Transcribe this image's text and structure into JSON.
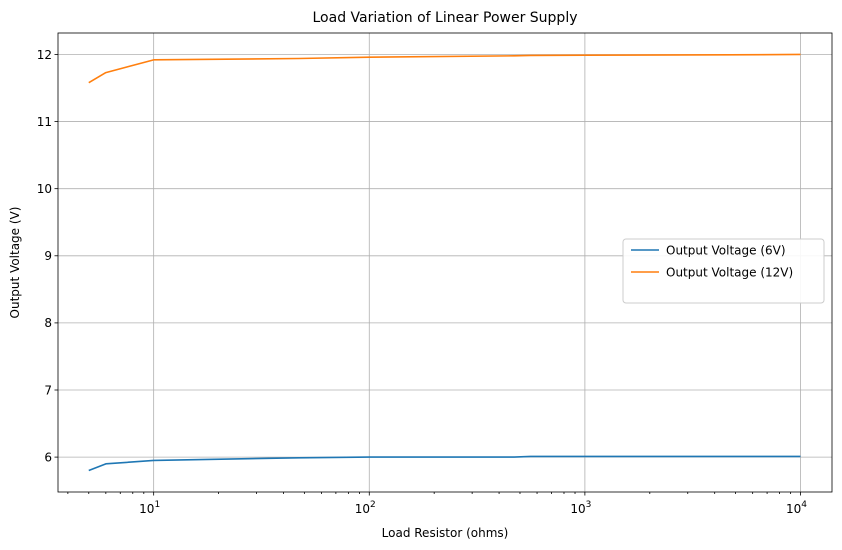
{
  "chart_data": {
    "type": "line",
    "title": "Load Variation of Linear Power Supply",
    "xlabel": "Load Resistor (ohms)",
    "ylabel": "Output Voltage (V)",
    "xscale": "log",
    "xlim": [
      3.6,
      14000
    ],
    "ylim": [
      5.48,
      12.32
    ],
    "grid": true,
    "legend_position": "center-right",
    "xticks": [
      {
        "value": 10,
        "base": "10",
        "exp": "1"
      },
      {
        "value": 100,
        "base": "10",
        "exp": "2"
      },
      {
        "value": 1000,
        "base": "10",
        "exp": "3"
      },
      {
        "value": 10000,
        "base": "10",
        "exp": "4"
      }
    ],
    "yticks": [
      {
        "value": 6,
        "label": "6"
      },
      {
        "value": 7,
        "label": "7"
      },
      {
        "value": 8,
        "label": "8"
      },
      {
        "value": 9,
        "label": "9"
      },
      {
        "value": 10,
        "label": "10"
      },
      {
        "value": 11,
        "label": "11"
      },
      {
        "value": 12,
        "label": "12"
      }
    ],
    "series": [
      {
        "name": "Output Voltage (6V)",
        "color": "#1f77b4",
        "x": [
          5,
          6,
          10,
          47,
          100,
          470,
          560,
          1000,
          4700,
          10000
        ],
        "y": [
          5.8,
          5.9,
          5.95,
          5.99,
          6.0,
          6.0,
          6.01,
          6.01,
          6.01,
          6.01
        ]
      },
      {
        "name": "Output Voltage (12V)",
        "color": "#ff7f0e",
        "x": [
          5,
          6,
          10,
          47,
          100,
          470,
          560,
          1000,
          4700,
          10000
        ],
        "y": [
          11.58,
          11.73,
          11.92,
          11.94,
          11.96,
          11.98,
          11.985,
          11.99,
          11.995,
          12.0
        ]
      }
    ]
  }
}
